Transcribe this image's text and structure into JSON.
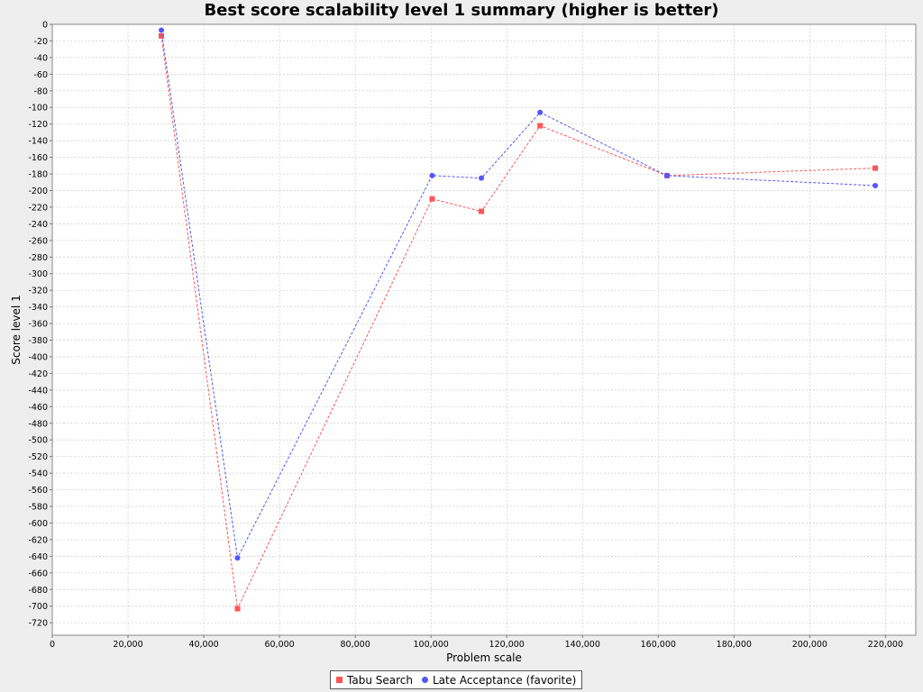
{
  "chart_data": {
    "type": "line",
    "title": "Best score scalability level 1 summary (higher is better)",
    "xlabel": "Problem scale",
    "ylabel": "Score level 1",
    "xlim": [
      0,
      228000
    ],
    "ylim": [
      -735,
      0
    ],
    "x_ticks": [
      "0",
      "20,000",
      "40,000",
      "60,000",
      "80,000",
      "100,000",
      "120,000",
      "140,000",
      "160,000",
      "180,000",
      "200,000",
      "220,000"
    ],
    "y_ticks": [
      "0",
      "-20",
      "-40",
      "-60",
      "-80",
      "-100",
      "-120",
      "-140",
      "-160",
      "-180",
      "-200",
      "-220",
      "-240",
      "-260",
      "-280",
      "-300",
      "-320",
      "-340",
      "-360",
      "-380",
      "-400",
      "-420",
      "-440",
      "-460",
      "-480",
      "-500",
      "-520",
      "-540",
      "-560",
      "-580",
      "-600",
      "-620",
      "-640",
      "-660",
      "-680",
      "-700",
      "-720"
    ],
    "grid": true,
    "legend_position": "bottom",
    "series": [
      {
        "name": "Tabu Search",
        "color": "#ff5555",
        "marker": "square",
        "x": [
          28800,
          48900,
          100300,
          113300,
          128800,
          162300,
          217300
        ],
        "y": [
          -14,
          -703,
          -210,
          -225,
          -122,
          -182,
          -173
        ]
      },
      {
        "name": "Late Acceptance (favorite)",
        "color": "#5555ff",
        "marker": "circle",
        "x": [
          28800,
          48900,
          100300,
          113300,
          128800,
          162300,
          217300
        ],
        "y": [
          -7,
          -642,
          -182,
          -185,
          -106,
          -182,
          -194
        ]
      }
    ]
  }
}
